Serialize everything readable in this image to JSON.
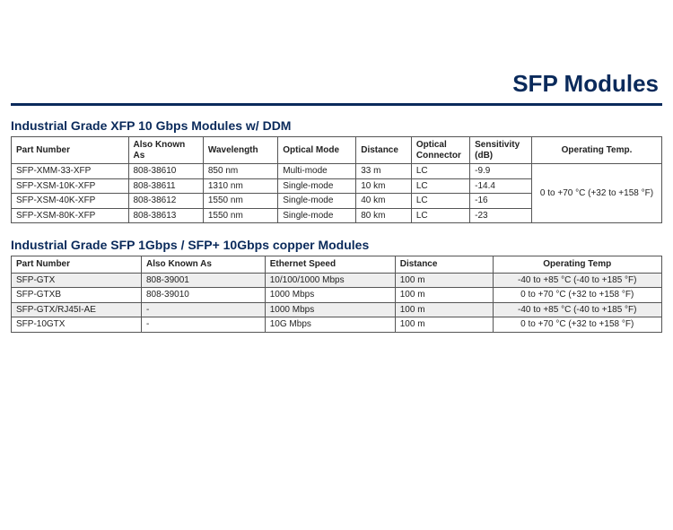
{
  "page_title": "SFP Modules",
  "rule_color": "#0a2a5b",
  "title_color": "#0a2a5b",
  "section_title_color": "#0a2a5b",
  "text_color": "#222222",
  "border_color": "#555555",
  "shade_color": "#eeeeee",
  "background_color": "#ffffff",
  "title_fontsize": 26,
  "section_title_fontsize": 14,
  "table_fontsize": 10,
  "table1": {
    "title": "Industrial Grade XFP 10 Gbps Modules w/ DDM",
    "col_widths_pct": [
      18.0,
      11.5,
      11.5,
      12.0,
      8.5,
      9.0,
      9.5,
      20.0
    ],
    "columns": [
      "Part Number",
      "Also Known As",
      "Wavelength",
      "Optical Mode",
      "Distance",
      "Optical Connector",
      "Sensitivity (dB)",
      "Operating Temp."
    ],
    "col_align_center": [
      false,
      false,
      false,
      false,
      false,
      false,
      false,
      true
    ],
    "operating_temp": "0 to +70 °C (+32 to +158 °F)",
    "rows": [
      {
        "part": "SFP-XMM-33-XFP",
        "aka": "808-38610",
        "wl": "850 nm",
        "mode": "Multi-mode",
        "dist": "33 m",
        "conn": "LC",
        "sens": "-9.9"
      },
      {
        "part": "SFP-XSM-10K-XFP",
        "aka": "808-38611",
        "wl": "1310 nm",
        "mode": "Single-mode",
        "dist": "10 km",
        "conn": "LC",
        "sens": "-14.4"
      },
      {
        "part": "SFP-XSM-40K-XFP",
        "aka": "808-38612",
        "wl": "1550 nm",
        "mode": "Single-mode",
        "dist": "40 km",
        "conn": "LC",
        "sens": "-16"
      },
      {
        "part": "SFP-XSM-80K-XFP",
        "aka": "808-38613",
        "wl": "1550 nm",
        "mode": "Single-mode",
        "dist": "80 km",
        "conn": "LC",
        "sens": "-23"
      }
    ]
  },
  "table2": {
    "title": "Industrial Grade SFP 1Gbps / SFP+ 10Gbps copper Modules",
    "col_widths_pct": [
      20.0,
      19.0,
      20.0,
      15.0,
      26.0
    ],
    "columns": [
      "Part Number",
      "Also Known As",
      "Ethernet Speed",
      "Distance",
      "Operating Temp"
    ],
    "col_align_center": [
      false,
      false,
      false,
      false,
      true
    ],
    "rows": [
      {
        "part": "SFP-GTX",
        "aka": "808-39001",
        "speed": "10/100/1000 Mbps",
        "dist": "100 m",
        "temp": "-40 to +85 °C (-40 to +185 °F)",
        "shaded": true
      },
      {
        "part": "SFP-GTXB",
        "aka": "808-39010",
        "speed": "1000 Mbps",
        "dist": "100 m",
        "temp": "0 to +70 °C (+32 to +158 °F)",
        "shaded": false
      },
      {
        "part": "SFP-GTX/RJ45I-AE",
        "aka": "-",
        "speed": "1000 Mbps",
        "dist": "100 m",
        "temp": "-40 to +85 °C (-40 to +185 °F)",
        "shaded": true
      },
      {
        "part": "SFP-10GTX",
        "aka": "-",
        "speed": "10G Mbps",
        "dist": "100 m",
        "temp": "0 to +70 °C (+32 to +158 °F)",
        "shaded": false
      }
    ]
  }
}
